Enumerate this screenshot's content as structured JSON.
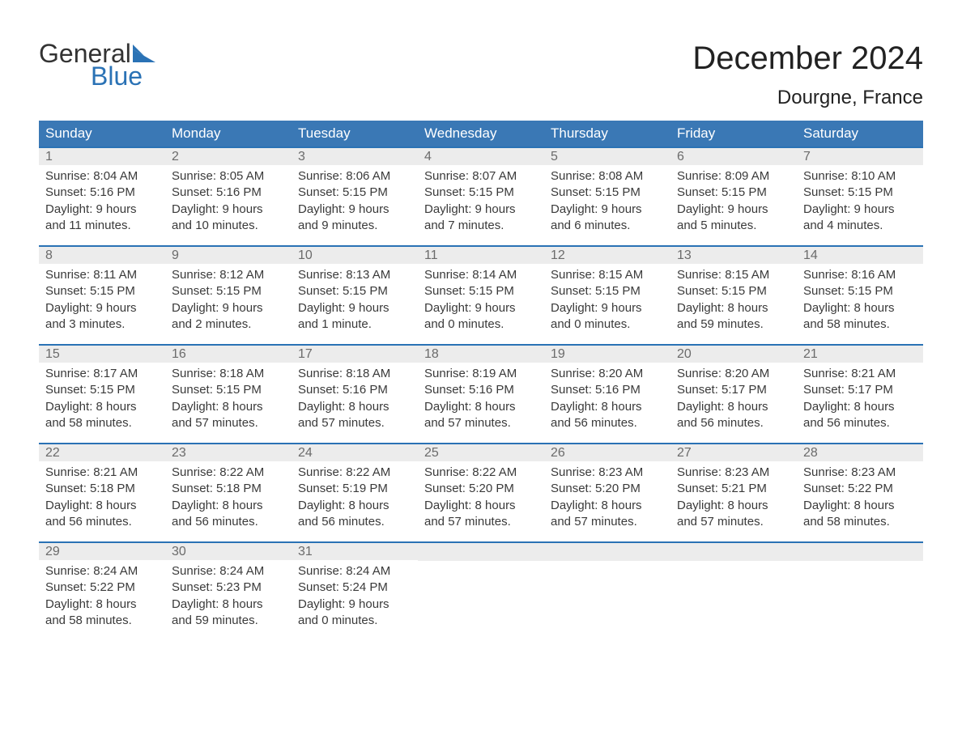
{
  "logo": {
    "word1": "General",
    "word2": "Blue"
  },
  "header": {
    "month_title": "December 2024",
    "location": "Dourgne, France"
  },
  "style": {
    "header_bg": "#3a78b5",
    "header_text": "#ffffff",
    "week_border": "#2a72b5",
    "daynum_bg": "#ececec",
    "daynum_text": "#6b6b6b",
    "body_text": "#3a3a3a",
    "page_bg": "#ffffff",
    "title_color": "#222222",
    "logo_dark": "#333333",
    "logo_blue": "#2a72b5",
    "month_fontsize": 40,
    "location_fontsize": 24,
    "dayheader_fontsize": 17,
    "body_fontsize": 15
  },
  "day_labels": [
    "Sunday",
    "Monday",
    "Tuesday",
    "Wednesday",
    "Thursday",
    "Friday",
    "Saturday"
  ],
  "weeks": [
    [
      {
        "n": "1",
        "sunrise": "Sunrise: 8:04 AM",
        "sunset": "Sunset: 5:16 PM",
        "dl1": "Daylight: 9 hours",
        "dl2": "and 11 minutes."
      },
      {
        "n": "2",
        "sunrise": "Sunrise: 8:05 AM",
        "sunset": "Sunset: 5:16 PM",
        "dl1": "Daylight: 9 hours",
        "dl2": "and 10 minutes."
      },
      {
        "n": "3",
        "sunrise": "Sunrise: 8:06 AM",
        "sunset": "Sunset: 5:15 PM",
        "dl1": "Daylight: 9 hours",
        "dl2": "and 9 minutes."
      },
      {
        "n": "4",
        "sunrise": "Sunrise: 8:07 AM",
        "sunset": "Sunset: 5:15 PM",
        "dl1": "Daylight: 9 hours",
        "dl2": "and 7 minutes."
      },
      {
        "n": "5",
        "sunrise": "Sunrise: 8:08 AM",
        "sunset": "Sunset: 5:15 PM",
        "dl1": "Daylight: 9 hours",
        "dl2": "and 6 minutes."
      },
      {
        "n": "6",
        "sunrise": "Sunrise: 8:09 AM",
        "sunset": "Sunset: 5:15 PM",
        "dl1": "Daylight: 9 hours",
        "dl2": "and 5 minutes."
      },
      {
        "n": "7",
        "sunrise": "Sunrise: 8:10 AM",
        "sunset": "Sunset: 5:15 PM",
        "dl1": "Daylight: 9 hours",
        "dl2": "and 4 minutes."
      }
    ],
    [
      {
        "n": "8",
        "sunrise": "Sunrise: 8:11 AM",
        "sunset": "Sunset: 5:15 PM",
        "dl1": "Daylight: 9 hours",
        "dl2": "and 3 minutes."
      },
      {
        "n": "9",
        "sunrise": "Sunrise: 8:12 AM",
        "sunset": "Sunset: 5:15 PM",
        "dl1": "Daylight: 9 hours",
        "dl2": "and 2 minutes."
      },
      {
        "n": "10",
        "sunrise": "Sunrise: 8:13 AM",
        "sunset": "Sunset: 5:15 PM",
        "dl1": "Daylight: 9 hours",
        "dl2": "and 1 minute."
      },
      {
        "n": "11",
        "sunrise": "Sunrise: 8:14 AM",
        "sunset": "Sunset: 5:15 PM",
        "dl1": "Daylight: 9 hours",
        "dl2": "and 0 minutes."
      },
      {
        "n": "12",
        "sunrise": "Sunrise: 8:15 AM",
        "sunset": "Sunset: 5:15 PM",
        "dl1": "Daylight: 9 hours",
        "dl2": "and 0 minutes."
      },
      {
        "n": "13",
        "sunrise": "Sunrise: 8:15 AM",
        "sunset": "Sunset: 5:15 PM",
        "dl1": "Daylight: 8 hours",
        "dl2": "and 59 minutes."
      },
      {
        "n": "14",
        "sunrise": "Sunrise: 8:16 AM",
        "sunset": "Sunset: 5:15 PM",
        "dl1": "Daylight: 8 hours",
        "dl2": "and 58 minutes."
      }
    ],
    [
      {
        "n": "15",
        "sunrise": "Sunrise: 8:17 AM",
        "sunset": "Sunset: 5:15 PM",
        "dl1": "Daylight: 8 hours",
        "dl2": "and 58 minutes."
      },
      {
        "n": "16",
        "sunrise": "Sunrise: 8:18 AM",
        "sunset": "Sunset: 5:15 PM",
        "dl1": "Daylight: 8 hours",
        "dl2": "and 57 minutes."
      },
      {
        "n": "17",
        "sunrise": "Sunrise: 8:18 AM",
        "sunset": "Sunset: 5:16 PM",
        "dl1": "Daylight: 8 hours",
        "dl2": "and 57 minutes."
      },
      {
        "n": "18",
        "sunrise": "Sunrise: 8:19 AM",
        "sunset": "Sunset: 5:16 PM",
        "dl1": "Daylight: 8 hours",
        "dl2": "and 57 minutes."
      },
      {
        "n": "19",
        "sunrise": "Sunrise: 8:20 AM",
        "sunset": "Sunset: 5:16 PM",
        "dl1": "Daylight: 8 hours",
        "dl2": "and 56 minutes."
      },
      {
        "n": "20",
        "sunrise": "Sunrise: 8:20 AM",
        "sunset": "Sunset: 5:17 PM",
        "dl1": "Daylight: 8 hours",
        "dl2": "and 56 minutes."
      },
      {
        "n": "21",
        "sunrise": "Sunrise: 8:21 AM",
        "sunset": "Sunset: 5:17 PM",
        "dl1": "Daylight: 8 hours",
        "dl2": "and 56 minutes."
      }
    ],
    [
      {
        "n": "22",
        "sunrise": "Sunrise: 8:21 AM",
        "sunset": "Sunset: 5:18 PM",
        "dl1": "Daylight: 8 hours",
        "dl2": "and 56 minutes."
      },
      {
        "n": "23",
        "sunrise": "Sunrise: 8:22 AM",
        "sunset": "Sunset: 5:18 PM",
        "dl1": "Daylight: 8 hours",
        "dl2": "and 56 minutes."
      },
      {
        "n": "24",
        "sunrise": "Sunrise: 8:22 AM",
        "sunset": "Sunset: 5:19 PM",
        "dl1": "Daylight: 8 hours",
        "dl2": "and 56 minutes."
      },
      {
        "n": "25",
        "sunrise": "Sunrise: 8:22 AM",
        "sunset": "Sunset: 5:20 PM",
        "dl1": "Daylight: 8 hours",
        "dl2": "and 57 minutes."
      },
      {
        "n": "26",
        "sunrise": "Sunrise: 8:23 AM",
        "sunset": "Sunset: 5:20 PM",
        "dl1": "Daylight: 8 hours",
        "dl2": "and 57 minutes."
      },
      {
        "n": "27",
        "sunrise": "Sunrise: 8:23 AM",
        "sunset": "Sunset: 5:21 PM",
        "dl1": "Daylight: 8 hours",
        "dl2": "and 57 minutes."
      },
      {
        "n": "28",
        "sunrise": "Sunrise: 8:23 AM",
        "sunset": "Sunset: 5:22 PM",
        "dl1": "Daylight: 8 hours",
        "dl2": "and 58 minutes."
      }
    ],
    [
      {
        "n": "29",
        "sunrise": "Sunrise: 8:24 AM",
        "sunset": "Sunset: 5:22 PM",
        "dl1": "Daylight: 8 hours",
        "dl2": "and 58 minutes."
      },
      {
        "n": "30",
        "sunrise": "Sunrise: 8:24 AM",
        "sunset": "Sunset: 5:23 PM",
        "dl1": "Daylight: 8 hours",
        "dl2": "and 59 minutes."
      },
      {
        "n": "31",
        "sunrise": "Sunrise: 8:24 AM",
        "sunset": "Sunset: 5:24 PM",
        "dl1": "Daylight: 9 hours",
        "dl2": "and 0 minutes."
      },
      {
        "empty": true
      },
      {
        "empty": true
      },
      {
        "empty": true
      },
      {
        "empty": true
      }
    ]
  ]
}
